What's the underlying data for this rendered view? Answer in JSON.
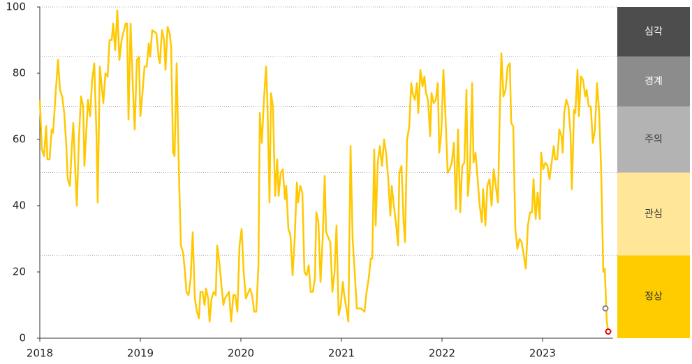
{
  "chart_data": {
    "type": "line",
    "xlim": [
      2018,
      2023.7
    ],
    "xticks": [
      2018,
      2019,
      2020,
      2021,
      2022,
      2023
    ],
    "ylim": [
      0,
      100
    ],
    "yticks": [
      0,
      20,
      40,
      60,
      80,
      100
    ],
    "color": "#ffc800",
    "x": [
      2018.0,
      2018.021,
      2018.042,
      2018.063,
      2018.076,
      2018.097,
      2018.118,
      2018.132,
      2018.16,
      2018.181,
      2018.201,
      2018.222,
      2018.243,
      2018.264,
      2018.278,
      2018.299,
      2018.319,
      2018.333,
      2018.354,
      2018.368,
      2018.389,
      2018.41,
      2018.431,
      2018.444,
      2018.465,
      2018.479,
      2018.5,
      2018.521,
      2018.542,
      2018.563,
      2018.576,
      2018.597,
      2018.632,
      2018.653,
      2018.674,
      2018.694,
      2018.715,
      2018.729,
      2018.75,
      2018.771,
      2018.792,
      2018.813,
      2018.854,
      2018.868,
      2018.882,
      2018.903,
      2018.924,
      2018.944,
      2018.965,
      2018.986,
      2019.0,
      2019.021,
      2019.042,
      2019.063,
      2019.083,
      2019.097,
      2019.118,
      2019.16,
      2019.181,
      2019.194,
      2019.215,
      2019.236,
      2019.25,
      2019.271,
      2019.292,
      2019.306,
      2019.326,
      2019.34,
      2019.361,
      2019.382,
      2019.403,
      2019.424,
      2019.444,
      2019.458,
      2019.479,
      2019.5,
      2019.521,
      2019.542,
      2019.563,
      2019.583,
      2019.597,
      2019.618,
      2019.639,
      2019.653,
      2019.674,
      2019.688,
      2019.708,
      2019.729,
      2019.75,
      2019.764,
      2019.785,
      2019.806,
      2019.826,
      2019.84,
      2019.882,
      2019.903,
      2019.924,
      2019.944,
      2019.965,
      2019.986,
      2020.007,
      2020.028,
      2020.049,
      2020.09,
      2020.111,
      2020.132,
      2020.153,
      2020.174,
      2020.188,
      2020.208,
      2020.229,
      2020.25,
      2020.264,
      2020.285,
      2020.299,
      2020.319,
      2020.34,
      2020.361,
      2020.375,
      2020.396,
      2020.417,
      2020.438,
      2020.451,
      2020.472,
      2020.493,
      2020.514,
      2020.535,
      2020.556,
      2020.569,
      2020.59,
      2020.611,
      2020.632,
      2020.653,
      2020.674,
      2020.694,
      2020.715,
      2020.736,
      2020.75,
      2020.771,
      2020.792,
      2020.813,
      2020.833,
      2020.847,
      2020.889,
      2020.91,
      2020.931,
      2020.951,
      2020.972,
      2020.993,
      2021.014,
      2021.028,
      2021.049,
      2021.069,
      2021.09,
      2021.111,
      2021.132,
      2021.153,
      2021.194,
      2021.229,
      2021.25,
      2021.271,
      2021.292,
      2021.306,
      2021.326,
      2021.34,
      2021.361,
      2021.382,
      2021.403,
      2021.424,
      2021.444,
      2021.465,
      2021.486,
      2021.5,
      2021.521,
      2021.542,
      2021.563,
      2021.576,
      2021.597,
      2021.618,
      2021.632,
      2021.653,
      2021.674,
      2021.694,
      2021.708,
      2021.729,
      2021.75,
      2021.764,
      2021.785,
      2021.806,
      2021.826,
      2021.84,
      2021.861,
      2021.882,
      2021.896,
      2021.917,
      2021.938,
      2021.958,
      2021.972,
      2021.993,
      2022.014,
      2022.035,
      2022.056,
      2022.076,
      2022.097,
      2022.118,
      2022.139,
      2022.16,
      2022.181,
      2022.201,
      2022.222,
      2022.243,
      2022.257,
      2022.278,
      2022.299,
      2022.313,
      2022.333,
      2022.354,
      2022.375,
      2022.396,
      2022.41,
      2022.431,
      2022.451,
      2022.472,
      2022.493,
      2022.514,
      2022.535,
      2022.556,
      2022.576,
      2022.59,
      2022.611,
      2022.632,
      2022.653,
      2022.674,
      2022.688,
      2022.708,
      2022.729,
      2022.75,
      2022.771,
      2022.792,
      2022.813,
      2022.833,
      2022.854,
      2022.875,
      2022.896,
      2022.91,
      2022.931,
      2022.951,
      2022.972,
      2022.986,
      2023.007,
      2023.028,
      2023.049,
      2023.069,
      2023.09,
      2023.111,
      2023.125,
      2023.146,
      2023.167,
      2023.188,
      2023.201,
      2023.215,
      2023.236,
      2023.257,
      2023.278,
      2023.292,
      2023.313,
      2023.326,
      2023.347,
      2023.361,
      2023.382,
      2023.403,
      2023.424,
      2023.438,
      2023.458,
      2023.479,
      2023.5,
      2023.521,
      2023.542,
      2023.563,
      2023.583,
      2023.604,
      2023.618,
      2023.639,
      2023.653
    ],
    "values": [
      72,
      57,
      55,
      64,
      54,
      54,
      63,
      62,
      75,
      84,
      75,
      73,
      68,
      58,
      48,
      46,
      58,
      65,
      50,
      40,
      60,
      73,
      70,
      52,
      64,
      72,
      67,
      78,
      83,
      62,
      41,
      82,
      71,
      80,
      79,
      90,
      90,
      95,
      87,
      99,
      84,
      90,
      95,
      95,
      66,
      95,
      77,
      63,
      84,
      85,
      67,
      74,
      82,
      82,
      89,
      85,
      93,
      92,
      85,
      83,
      93,
      90,
      81,
      94,
      92,
      88,
      56,
      55,
      83,
      52,
      28,
      26,
      20,
      14,
      13,
      18,
      32,
      12,
      8,
      6,
      14,
      14,
      10,
      15,
      12,
      5,
      12,
      14,
      13,
      28,
      23,
      16,
      10,
      12,
      14,
      5,
      13,
      13,
      8,
      28,
      33,
      20,
      12,
      15,
      13,
      8,
      8,
      22,
      68,
      59,
      72,
      82,
      71,
      41,
      74,
      70,
      43,
      54,
      43,
      50,
      51,
      42,
      46,
      33,
      31,
      19,
      30,
      47,
      41,
      46,
      44,
      20,
      19,
      22,
      14,
      14,
      18,
      38,
      35,
      17,
      30,
      49,
      32,
      29,
      14,
      20,
      34,
      7,
      10,
      17,
      13,
      9,
      5,
      58,
      30,
      20,
      9,
      9,
      8,
      14,
      18,
      24,
      24,
      57,
      34,
      53,
      58,
      52,
      60,
      56,
      48,
      37,
      46,
      40,
      35,
      28,
      50,
      52,
      35,
      29,
      60,
      64,
      77,
      74,
      72,
      77,
      68,
      81,
      76,
      79,
      74,
      72,
      61,
      74,
      71,
      72,
      77,
      56,
      62,
      81,
      67,
      50,
      51,
      53,
      59,
      39,
      63,
      38,
      52,
      53,
      75,
      43,
      51,
      77,
      53,
      56,
      48,
      40,
      35,
      45,
      34,
      46,
      48,
      40,
      51,
      46,
      41,
      70,
      86,
      73,
      75,
      82,
      83,
      65,
      64,
      33,
      27,
      30,
      29,
      25,
      21,
      34,
      38,
      38,
      48,
      36,
      44,
      36,
      56,
      51,
      53,
      52,
      48,
      53,
      58,
      54,
      54,
      63,
      61,
      56,
      68,
      72,
      70,
      62,
      45,
      69,
      68,
      81,
      67,
      79,
      78,
      73,
      75,
      70,
      70,
      59,
      63,
      77,
      68,
      50,
      20,
      21,
      5,
      2
    ],
    "points": [
      {
        "x": 2023.625,
        "y": 9,
        "color": "#808080"
      },
      {
        "x": 2023.653,
        "y": 2,
        "color": "#e00000"
      }
    ],
    "zones": [
      {
        "label": "심각",
        "from": 85,
        "to": 100,
        "color": "#4d4d4d",
        "text_color": "#ffffff"
      },
      {
        "label": "경계",
        "from": 70,
        "to": 85,
        "color": "#8c8c8c",
        "text_color": "#ffffff"
      },
      {
        "label": "주의",
        "from": 50,
        "to": 70,
        "color": "#b3b3b3",
        "text_color": "#333333"
      },
      {
        "label": "관심",
        "from": 25,
        "to": 50,
        "color": "#ffe699",
        "text_color": "#333333"
      },
      {
        "label": "정상",
        "from": 0,
        "to": 25,
        "color": "#ffcc00",
        "text_color": "#333333"
      }
    ]
  }
}
